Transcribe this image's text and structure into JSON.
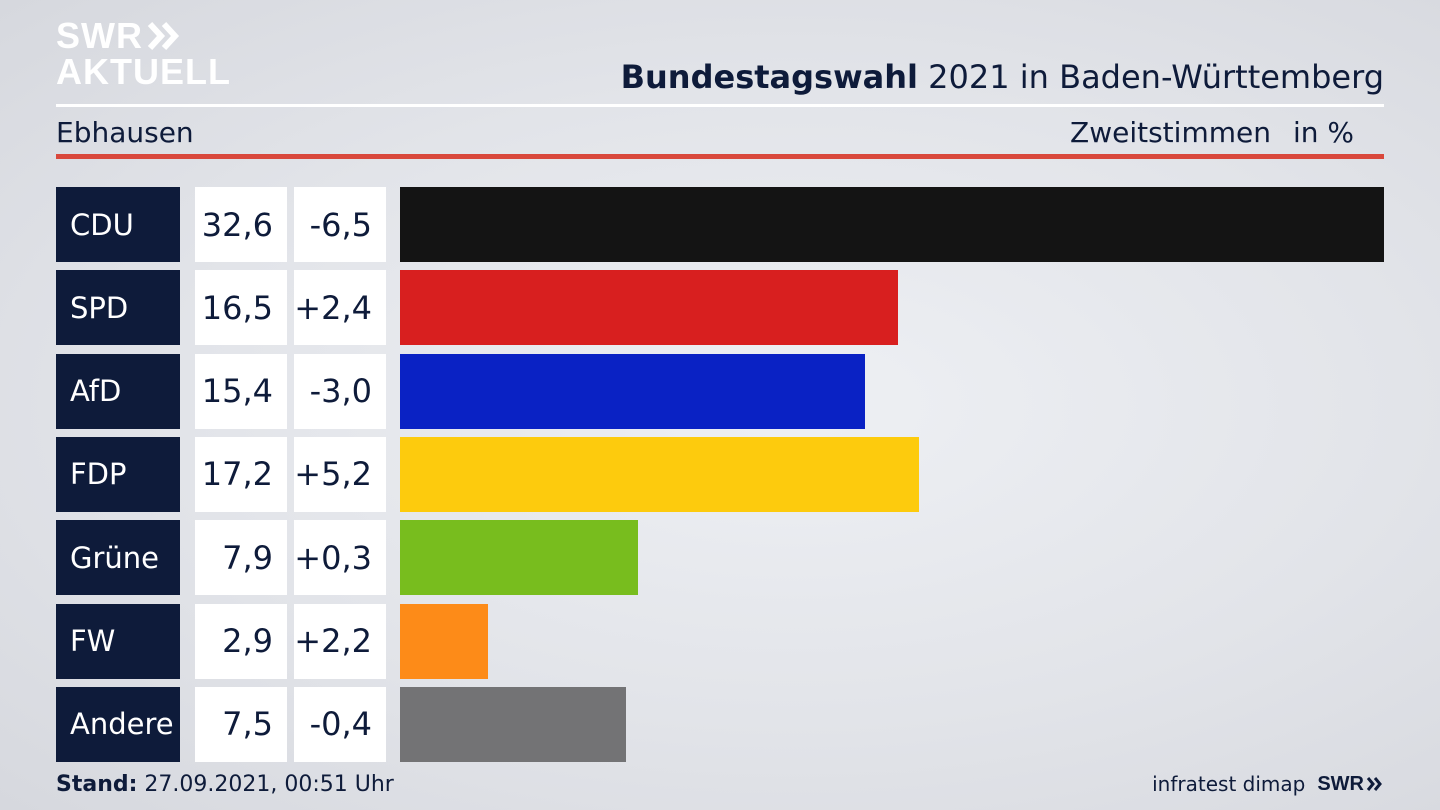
{
  "brand": {
    "line1": "SWR",
    "line2": "AKTUELL",
    "footer_logo": "SWR"
  },
  "header": {
    "title_bold": "Bundestagswahl",
    "title_rest": " 2021 in Baden-Württemberg",
    "location": "Ebhausen",
    "vote_type": "Zweitstimmen",
    "unit": "in %"
  },
  "footer": {
    "stand_label": "Stand:",
    "stand_value": " 27.09.2021, 00:51 Uhr",
    "source": "infratest dimap"
  },
  "colors": {
    "navy": "#0e1b3a",
    "accent_red": "#d9483c"
  },
  "chart_data": {
    "type": "bar",
    "categories": [
      "CDU",
      "SPD",
      "AfD",
      "FDP",
      "Grüne",
      "FW",
      "Andere"
    ],
    "values": [
      32.6,
      16.5,
      15.4,
      17.2,
      7.9,
      2.9,
      7.5
    ],
    "values_label": [
      "32,6",
      "16,5",
      "15,4",
      "17,2",
      "7,9",
      "2,9",
      "7,5"
    ],
    "changes_label": [
      "-6,5",
      "+2,4",
      "-3,0",
      "+5,2",
      "+0,3",
      "+2,2",
      "-0,4"
    ],
    "colors": [
      "#141414",
      "#d81f1f",
      "#0a22c4",
      "#fdcb0d",
      "#78bd1e",
      "#fd8b18",
      "#737375"
    ],
    "orientation": "horizontal",
    "xlim": [
      0,
      32.6
    ],
    "grid": false
  }
}
